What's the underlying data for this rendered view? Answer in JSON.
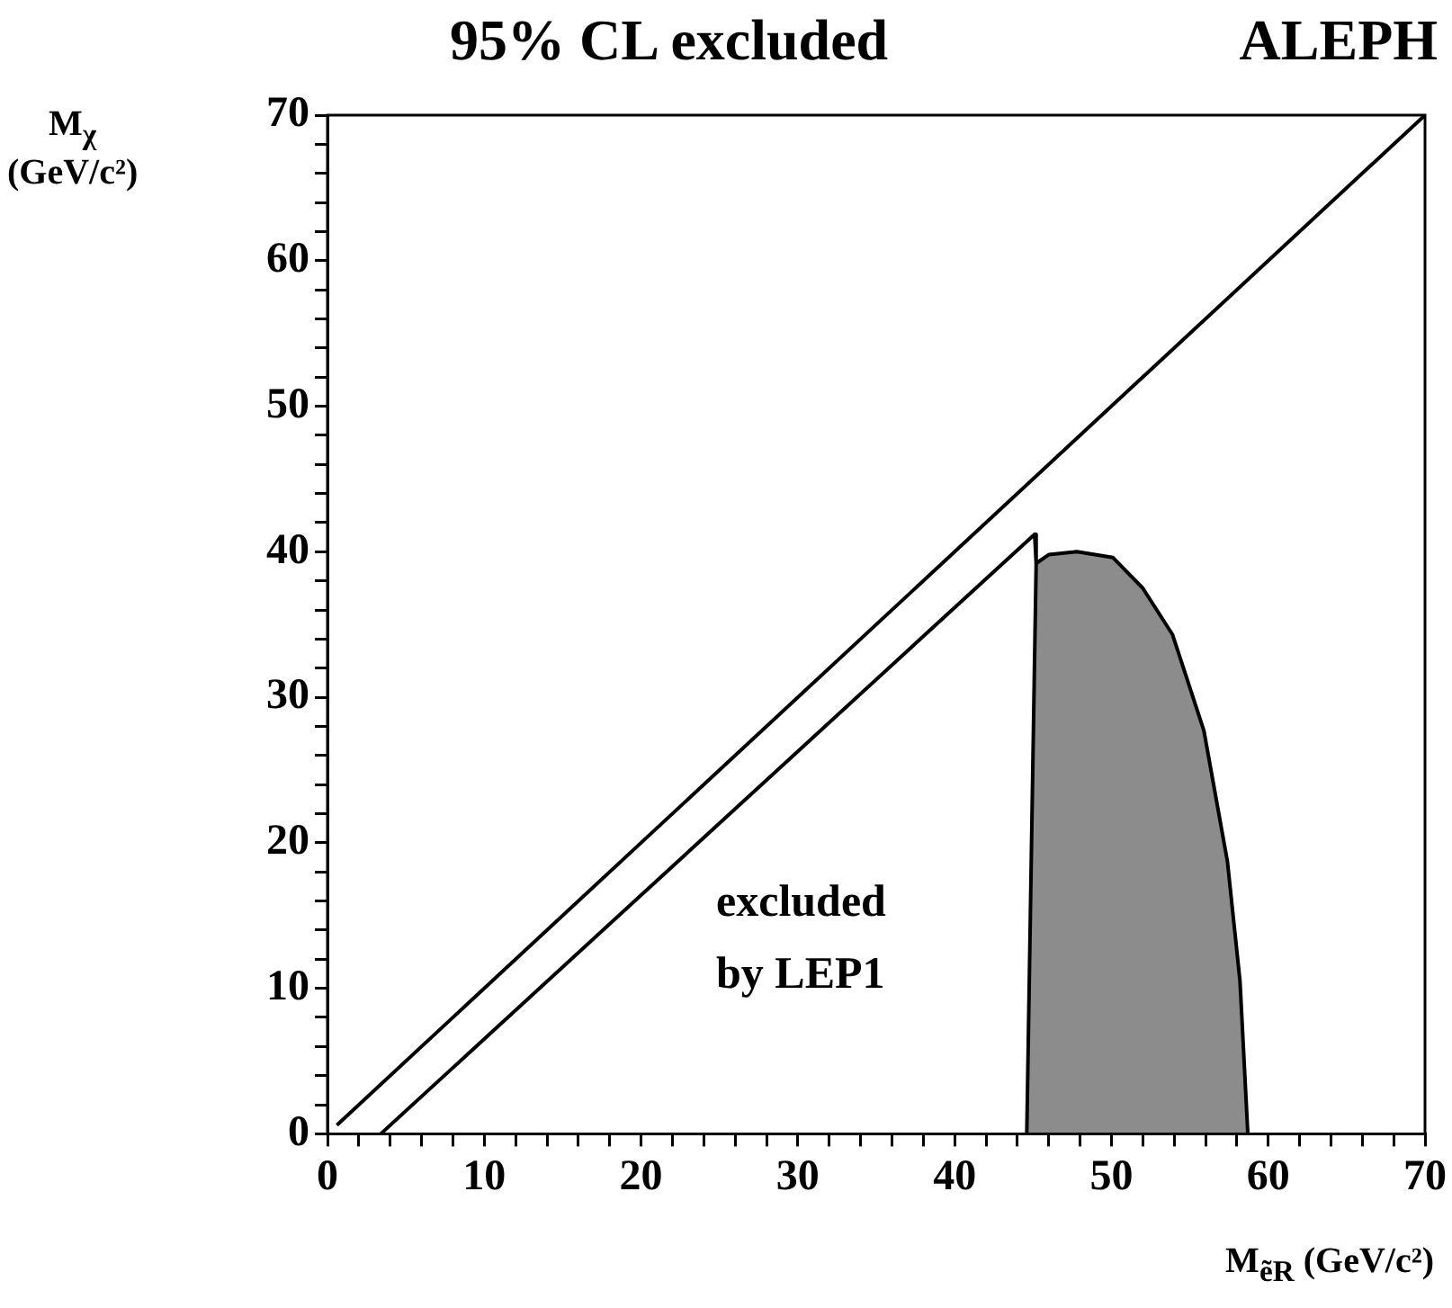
{
  "chart_data": {
    "type": "line",
    "title": "95% CL excluded",
    "xlabel": "M$_{ẽR}$ (GeV/c²)",
    "ylabel": "M$_{χ}$ (GeV/c²)",
    "annotations": [
      "ALEPH",
      "excluded by LEP1"
    ],
    "xlim": [
      0,
      70
    ],
    "ylim": [
      0,
      70
    ],
    "xticks": [
      0,
      {
        "value": 2,
        "label": null
      },
      {
        "value": 4,
        "label": null
      },
      {
        "value": 6,
        "label": null
      },
      {
        "value": 8,
        "label": null
      },
      10,
      {
        "value": 12,
        "label": null
      },
      {
        "value": 14,
        "label": null
      },
      {
        "value": 16,
        "label": null
      },
      {
        "value": 18,
        "label": null
      },
      20,
      {
        "value": 22,
        "label": null
      },
      {
        "value": 24,
        "label": null
      },
      {
        "value": 26,
        "label": null
      },
      {
        "value": 28,
        "label": null
      },
      30,
      {
        "value": 32,
        "label": null
      },
      {
        "value": 34,
        "label": null
      },
      {
        "value": 36,
        "label": null
      },
      {
        "value": 38,
        "label": null
      },
      40,
      {
        "value": 42,
        "label": null
      },
      {
        "value": 44,
        "label": null
      },
      {
        "value": 46,
        "label": null
      },
      {
        "value": 48,
        "label": null
      },
      50,
      {
        "value": 52,
        "label": null
      },
      {
        "value": 54,
        "label": null
      },
      {
        "value": 56,
        "label": null
      },
      {
        "value": 58,
        "label": null
      },
      60,
      {
        "value": 62,
        "label": null
      },
      {
        "value": 64,
        "label": null
      },
      {
        "value": 66,
        "label": null
      },
      {
        "value": 68,
        "label": null
      },
      70
    ],
    "yticks": [
      0,
      {
        "value": 2,
        "label": null
      },
      {
        "value": 4,
        "label": null
      },
      {
        "value": 6,
        "label": null
      },
      {
        "value": 8,
        "label": null
      },
      10,
      {
        "value": 12,
        "label": null
      },
      {
        "value": 14,
        "label": null
      },
      {
        "value": 16,
        "label": null
      },
      {
        "value": 18,
        "label": null
      },
      20,
      {
        "value": 22,
        "label": null
      },
      {
        "value": 24,
        "label": null
      },
      {
        "value": 26,
        "label": null
      },
      {
        "value": 28,
        "label": null
      },
      30,
      {
        "value": 32,
        "label": null
      },
      {
        "value": 34,
        "label": null
      },
      {
        "value": 36,
        "label": null
      },
      {
        "value": 38,
        "label": null
      },
      40,
      {
        "value": 42,
        "label": null
      },
      {
        "value": 44,
        "label": null
      },
      {
        "value": 46,
        "label": null
      },
      {
        "value": 48,
        "label": null
      },
      50,
      {
        "value": 52,
        "label": null
      },
      {
        "value": 54,
        "label": null
      },
      {
        "value": 56,
        "label": null
      },
      {
        "value": 58,
        "label": null
      },
      60,
      {
        "value": 62,
        "label": null
      },
      {
        "value": 64,
        "label": null
      },
      {
        "value": 66,
        "label": null
      },
      {
        "value": 68,
        "label": null
      },
      70
    ],
    "grid": false,
    "legend": false,
    "marker": "none",
    "series": [
      {
        "color": "#000000",
        "x": [
          0.6,
          70
        ],
        "values": [
          0.6,
          70
        ]
      },
      {
        "color": "#000000",
        "x": [
          3.4,
          45.1,
          45.2
        ],
        "values": [
          0,
          41.2,
          39.2
        ]
      },
      {
        "type": "area",
        "color": "#8c8c8c",
        "x": [
          44.6,
          45.2,
          46,
          47.8,
          50.1,
          52,
          53.9,
          55.9,
          57.4,
          58.2,
          58.7
        ],
        "values": [
          0,
          39.2,
          39.8,
          40,
          39.6,
          37.5,
          34.3,
          27.7,
          18.7,
          10.5,
          0
        ]
      }
    ]
  }
}
